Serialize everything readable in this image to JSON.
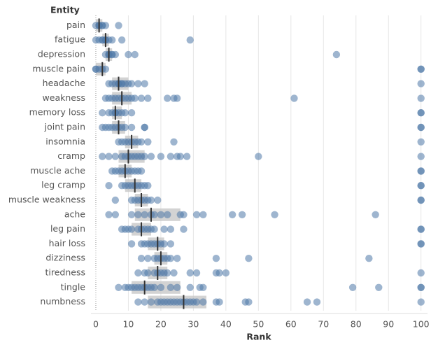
{
  "chart_data": {
    "type": "strip",
    "y_header": "Entity",
    "x_label": "Rank",
    "color": "#4e79a7",
    "median_color": "#333333",
    "box_color": "#c8c8c8",
    "xlim": [
      -1.5,
      102
    ],
    "xticks": [
      0,
      10,
      20,
      30,
      40,
      50,
      60,
      70,
      80,
      90,
      100
    ],
    "grid": true,
    "categories": [
      "pain",
      "fatigue",
      "depression",
      "muscle pain",
      "headache",
      "weakness",
      "memory loss",
      "joint pain",
      "insomnia",
      "cramp",
      "muscle ache",
      "leg cramp",
      "muscle weakness",
      "ache",
      "leg pain",
      "hair loss",
      "dizziness",
      "tiredness",
      "tingle",
      "numbness"
    ],
    "points": [
      [
        0,
        1,
        1,
        2,
        2,
        3,
        7
      ],
      [
        0,
        1,
        2,
        2,
        3,
        3,
        4,
        5,
        8,
        29
      ],
      [
        3,
        4,
        4,
        5,
        5,
        6,
        10,
        12,
        74
      ],
      [
        0,
        0,
        1,
        2,
        3,
        100,
        100
      ],
      [
        4,
        5,
        6,
        7,
        7,
        8,
        8,
        9,
        10,
        11,
        13,
        15,
        100
      ],
      [
        3,
        4,
        5,
        6,
        7,
        8,
        9,
        10,
        11,
        12,
        14,
        16,
        22,
        24,
        25,
        61,
        100
      ],
      [
        2,
        4,
        5,
        6,
        6,
        7,
        8,
        9,
        11,
        100,
        100
      ],
      [
        2,
        3,
        4,
        5,
        6,
        7,
        8,
        9,
        11,
        15,
        15,
        100,
        100
      ],
      [
        7,
        8,
        9,
        10,
        11,
        12,
        13,
        14,
        16,
        24,
        100
      ],
      [
        2,
        4,
        6,
        8,
        9,
        10,
        11,
        12,
        13,
        14,
        15,
        17,
        20,
        23,
        25,
        26,
        28,
        50,
        100
      ],
      [
        5,
        6,
        7,
        8,
        9,
        10,
        11,
        12,
        13,
        14,
        100,
        100
      ],
      [
        4,
        8,
        9,
        10,
        11,
        12,
        13,
        14,
        15,
        16,
        100,
        100
      ],
      [
        6,
        11,
        12,
        13,
        14,
        15,
        16,
        17,
        19,
        100,
        100
      ],
      [
        4,
        6,
        11,
        13,
        15,
        17,
        18,
        20,
        22,
        26,
        27,
        31,
        33,
        42,
        45,
        55,
        86
      ],
      [
        8,
        9,
        10,
        11,
        13,
        14,
        15,
        16,
        17,
        18,
        21,
        23,
        27,
        100,
        100
      ],
      [
        11,
        14,
        15,
        16,
        17,
        18,
        19,
        20,
        21,
        23,
        100,
        100
      ],
      [
        14,
        16,
        18,
        19,
        20,
        21,
        22,
        23,
        25,
        37,
        47,
        84
      ],
      [
        13,
        15,
        16,
        18,
        19,
        20,
        21,
        22,
        24,
        29,
        31,
        37,
        38,
        40,
        100
      ],
      [
        7,
        9,
        10,
        11,
        12,
        13,
        14,
        15,
        16,
        17,
        18,
        20,
        23,
        25,
        29,
        32,
        33,
        79,
        87,
        100,
        100
      ],
      [
        13,
        15,
        17,
        19,
        20,
        21,
        22,
        23,
        24,
        25,
        26,
        27,
        28,
        29,
        30,
        31,
        33,
        37,
        38,
        46,
        47,
        65,
        68,
        100
      ]
    ],
    "medians": [
      1,
      3,
      4,
      2,
      7,
      8,
      6,
      7,
      11,
      10,
      9,
      12,
      14,
      17,
      14,
      19,
      20,
      19,
      15,
      27
    ],
    "q1": [
      0,
      2,
      3,
      0,
      5,
      5,
      5,
      5,
      9,
      7,
      7,
      9,
      12,
      12,
      11,
      16,
      18,
      16,
      11,
      16
    ],
    "q3": [
      2,
      4,
      5,
      3,
      10,
      11,
      8,
      9,
      13,
      15,
      11,
      14,
      16,
      26,
      17,
      21,
      22,
      22,
      26,
      34
    ]
  }
}
